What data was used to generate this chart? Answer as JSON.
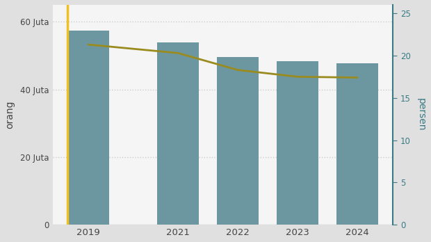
{
  "categories": [
    "2019",
    "2021",
    "2022",
    "2023",
    "2024"
  ],
  "bar_values": [
    57300000,
    53800000,
    49500000,
    48300000,
    47800000
  ],
  "line_values": [
    21.3,
    20.3,
    18.3,
    17.5,
    17.4
  ],
  "bar_color": "#6d97a0",
  "line_color": "#9a8b1e",
  "highlight_color": "#f0c020",
  "ylabel_left": "orang",
  "ylabel_right": "persen",
  "ylim_left": [
    0,
    65000000
  ],
  "ylim_right": [
    0,
    26.0
  ],
  "yticks_left": [
    0,
    20000000,
    40000000,
    60000000
  ],
  "ytick_labels_left": [
    "0",
    "20 Juta",
    "40 Juta",
    "60 Juta"
  ],
  "yticks_right": [
    0,
    5,
    10,
    15,
    20,
    25
  ],
  "fig_bg_color": "#e0e0e0",
  "plot_bg_color": "#f5f5f5",
  "grid_color": "#cccccc",
  "tick_color_left": "#444444",
  "tick_color_right": "#3a7a85",
  "bar_width": 0.7,
  "x_positions": [
    0,
    1.5,
    2.5,
    3.5,
    4.5
  ]
}
